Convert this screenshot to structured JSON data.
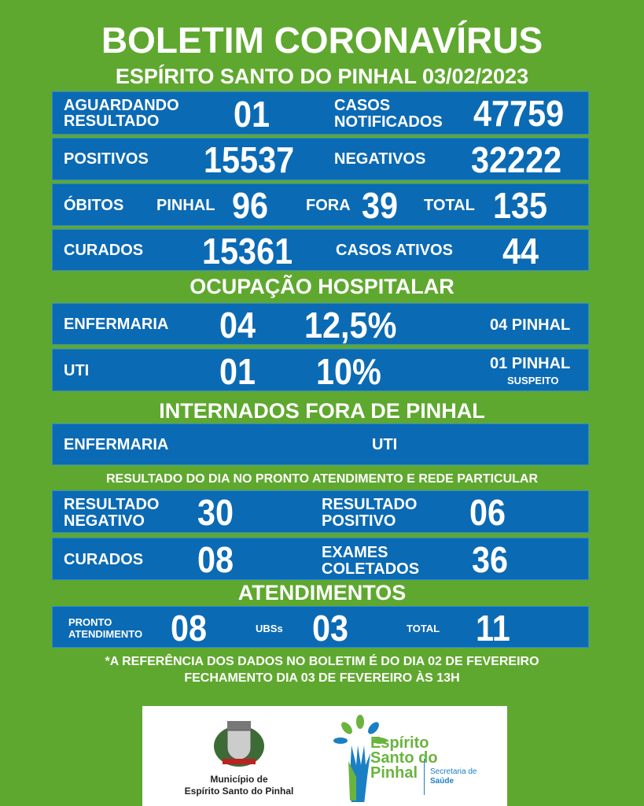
{
  "title": "BOLETIM CORONAVÍRUS",
  "subtitle": "ESPÍRITO SANTO DO PINHAL 03/02/2023",
  "summary": {
    "aguardando_label1": "AGUARDANDO",
    "aguardando_label2": "RESULTADO",
    "aguardando": "01",
    "notificados_label1": "CASOS",
    "notificados_label2": "NOTIFICADOS",
    "notificados": "47759",
    "positivos_label": "POSITIVOS",
    "positivos": "15537",
    "negativos_label": "NEGATIVOS",
    "negativos": "32222",
    "obitos_label": "ÓBITOS",
    "pinhal_label": "PINHAL",
    "obitos_pinhal": "96",
    "fora_label": "FORA",
    "obitos_fora": "39",
    "total_label": "TOTAL",
    "obitos_total": "135",
    "curados_label": "CURADOS",
    "curados": "15361",
    "ativos_label": "CASOS ATIVOS",
    "ativos": "44"
  },
  "ocupacao": {
    "heading": "OCUPAÇÃO HOSPITALAR",
    "enfermaria_label": "ENFERMARIA",
    "enfermaria": "04",
    "enfermaria_pct": "12,5%",
    "enfermaria_note": "04 PINHAL",
    "uti_label": "UTI",
    "uti": "01",
    "uti_pct": "10%",
    "uti_note": "01 PINHAL",
    "uti_note2": "SUSPEITO"
  },
  "internados_fora": {
    "heading": "INTERNADOS FORA DE PINHAL",
    "enfermaria_label": "ENFERMARIA",
    "uti_label": "UTI"
  },
  "resultado_dia": {
    "heading": "RESULTADO DO DIA NO PRONTO ATENDIMENTO E REDE PARTICULAR",
    "neg_label1": "RESULTADO",
    "neg_label2": "NEGATIVO",
    "negativo": "30",
    "pos_label1": "RESULTADO",
    "pos_label2": "POSITIVO",
    "positivo": "06",
    "curados_label": "CURADOS",
    "curados": "08",
    "exames_label1": "EXAMES",
    "exames_label2": "COLETADOS",
    "exames": "36"
  },
  "atendimentos": {
    "heading": "ATENDIMENTOS",
    "pa_label1": "PRONTO",
    "pa_label2": "ATENDIMENTO",
    "pa": "08",
    "ubs_label": "UBSs",
    "ubs": "03",
    "total_label": "TOTAL",
    "total": "11"
  },
  "footnote1": "*A REFERÊNCIA DOS DADOS NO BOLETIM É DO DIA 02 DE FEVEREIRO",
  "footnote2": "FECHAMENTO DIA 03 DE FEVEREIRO ÀS 13H",
  "logos": {
    "municipio1": "Município de",
    "municipio2": "Espírito Santo do Pinhal",
    "brand1": "Espírito",
    "brand2": "Santo do",
    "brand3": "Pinhal",
    "secretaria1": "Secretaria de",
    "secretaria2": "Saúde"
  },
  "colors": {
    "background": "#5fa82f",
    "panel": "#0b6ab4"
  }
}
